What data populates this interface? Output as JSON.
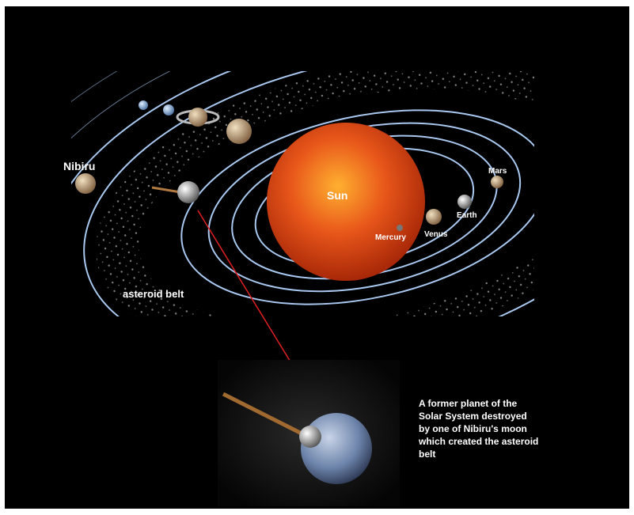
{
  "labels": {
    "nibiru": "Nibiru",
    "sun": "Sun",
    "mars": "Mars",
    "earth": "Earth",
    "venus": "Venus",
    "mercury": "Mercury",
    "asteroid_belt": "asteroid belt"
  },
  "caption": [
    "A former planet of the",
    "Solar System destroyed",
    "by one of Nibiru's moon",
    "which created the asteroid",
    "belt"
  ]
}
